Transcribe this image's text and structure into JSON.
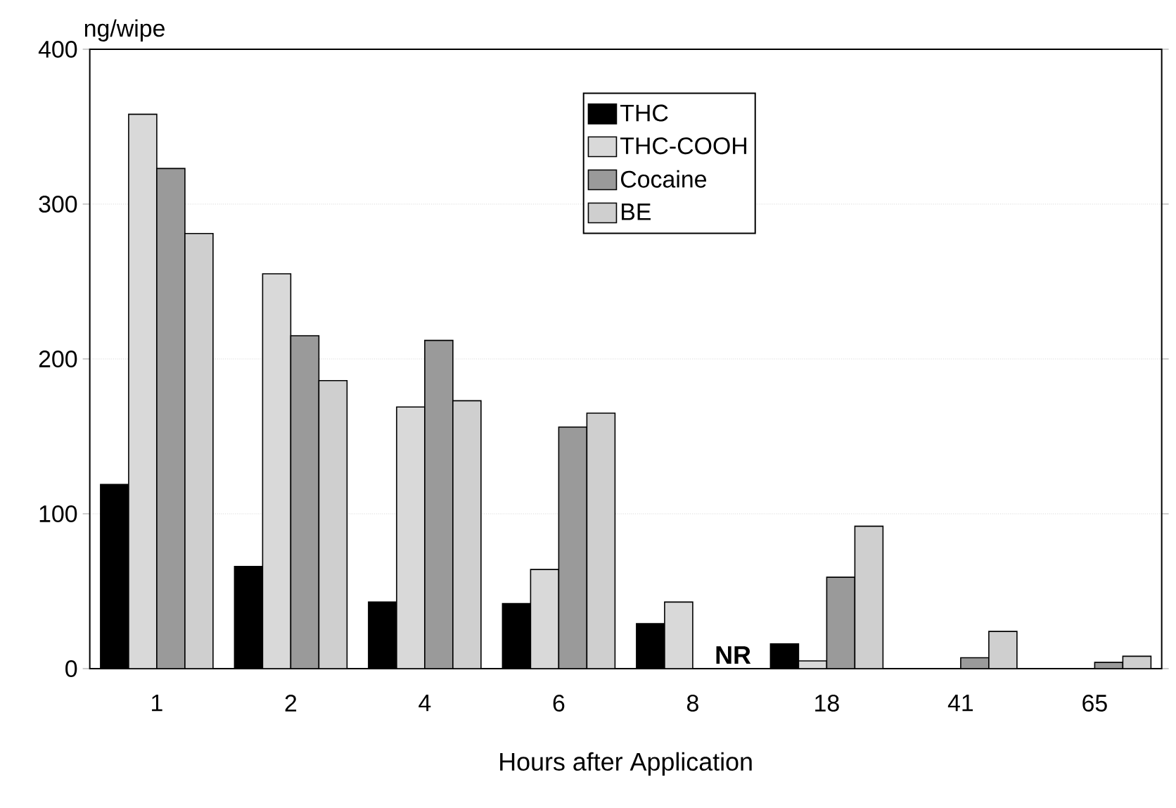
{
  "chart_data": {
    "type": "bar",
    "xlabel": "Hours after Application",
    "ylabel": "ng/wipe",
    "categories": [
      "1",
      "2",
      "4",
      "6",
      "8",
      "18",
      "41",
      "65"
    ],
    "series": [
      {
        "name": "THC",
        "color": "#000000",
        "values": [
          119,
          66,
          43,
          42,
          29,
          16,
          0,
          0
        ]
      },
      {
        "name": "THC-COOH",
        "color": "#d9d9d9",
        "values": [
          358,
          255,
          169,
          64,
          43,
          5,
          0,
          0
        ]
      },
      {
        "name": "Cocaine",
        "color": "#9a9a9a",
        "values": [
          323,
          215,
          212,
          156,
          null,
          59,
          7,
          4
        ]
      },
      {
        "name": "BE",
        "color": "#cfcfcf",
        "values": [
          281,
          186,
          173,
          165,
          null,
          92,
          24,
          8
        ]
      }
    ],
    "ylim": [
      0,
      400
    ],
    "yticks": [
      0,
      100,
      200,
      300,
      400
    ],
    "grid": "y",
    "legend": "top",
    "annotations": [
      {
        "text": "NR",
        "x": "8",
        "y": 0
      }
    ]
  }
}
